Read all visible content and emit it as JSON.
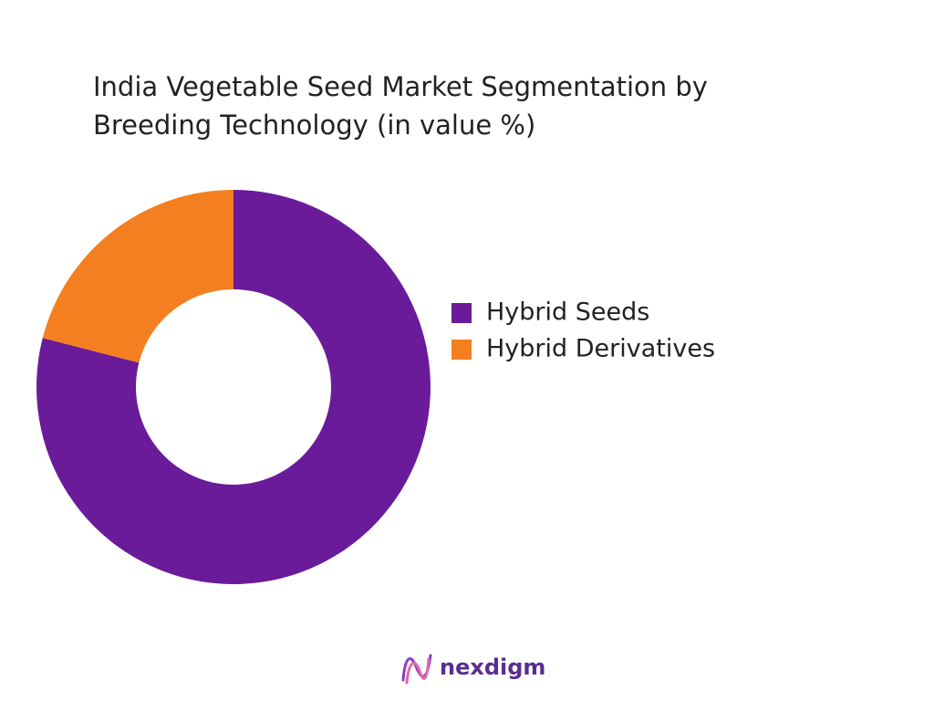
{
  "chart_data": {
    "type": "pie",
    "title": "India Vegetable Seed Market Segmentation by Breeding Technology (in value %)",
    "categories": [
      "Hybrid Seeds",
      "Hybrid Derivatives"
    ],
    "values": [
      79,
      21
    ],
    "colors": [
      "#6a1b9a",
      "#f47f20"
    ],
    "legend": "right"
  },
  "footer": {
    "brand": "nexdigm"
  }
}
